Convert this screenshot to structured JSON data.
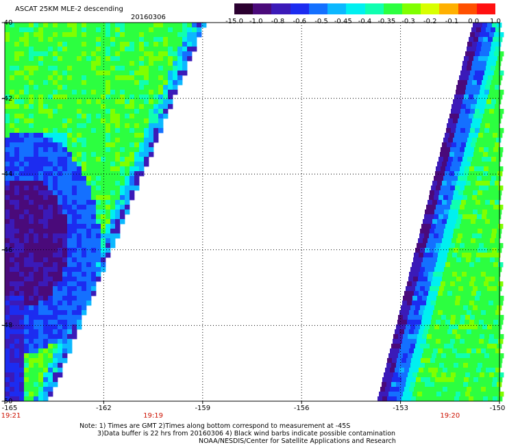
{
  "title": "ASCAT 25KM MLE-2 descending",
  "date": "20160306",
  "colorbar": {
    "labels": [
      "-15.0",
      "-1.0",
      "-0.8",
      "-0.6",
      "-0.5",
      "-0.45",
      "-0.4",
      "-0.35",
      "-0.3",
      "-0.2",
      "-0.1",
      "0.0",
      "1.0"
    ],
    "colors": [
      "#2b0030",
      "#4a0a7a",
      "#3b1ab8",
      "#1c2cf0",
      "#1470ff",
      "#0cb8ff",
      "#00f0f0",
      "#10ffb0",
      "#2cff40",
      "#80ff00",
      "#d8ff00",
      "#ffb000",
      "#ff5000",
      "#ff1010"
    ]
  },
  "map": {
    "lon_range": [
      -165,
      -150
    ],
    "lat_range": [
      -50,
      -40
    ],
    "lat_labels": [
      "-40",
      "-42",
      "-44",
      "-46",
      "-48",
      "-50"
    ],
    "lon_labels": [
      "-165",
      "-162",
      "-159",
      "-156",
      "-153",
      "-150"
    ],
    "time_labels": [
      {
        "text": "19:21",
        "lon": -165
      },
      {
        "text": "19:19",
        "lon": -160.5
      },
      {
        "text": "19:20",
        "lon": -151.5
      }
    ],
    "grid": true
  },
  "notes": [
    "Note: 1) Times are GMT 2)Times along bottom correspond to measurement at -45S",
    "3)Data buffer is 22 hrs from 20160306 4) Black wind barbs indicate possible contamination",
    "NOAA/NESDIS/Center for Satellite Applications and Research"
  ]
}
